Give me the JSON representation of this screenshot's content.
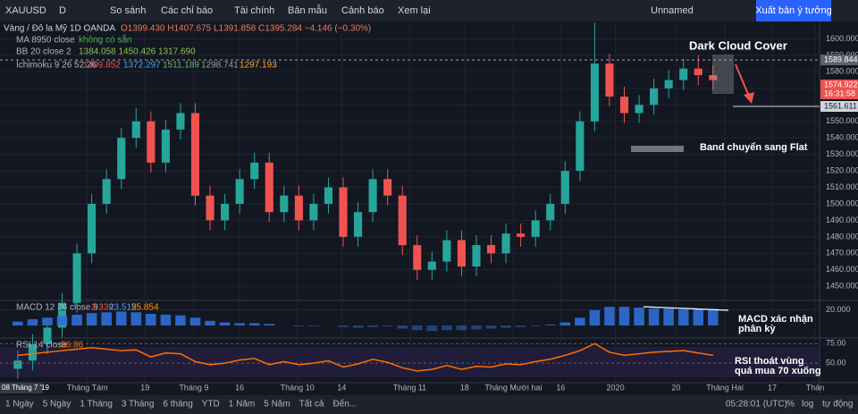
{
  "toolbar": {
    "symbol": "XAUUSD",
    "interval": "D",
    "items": [
      "So sánh",
      "Các chỉ báo",
      "Tài chính",
      "Bản mẫu",
      "Cảnh báo",
      "Xem lại"
    ],
    "layout": "Unnamed",
    "publish": "Xuất bản ý tưởng"
  },
  "legend": {
    "title": "Vàng / Đô la Mỹ  1D  OANDA",
    "ohlc": "O1399.430 H1407.675 L1391.858 C1395.284 −4.146 (−0.30%)",
    "ma": "MA 8950 close",
    "ma_value": "không có sẵn",
    "bb": "BB 20 close 2",
    "bb_values": "1384.058 1450.426 1317.690",
    "ichimoku": "Ichimoku 9 26 52 26",
    "ichimoku_values": [
      "1409.852",
      "1372.297",
      "1511.189",
      "1298.741",
      "1297.193"
    ],
    "macd": "MACD 12 26 close 9",
    "macd_values": [
      "−2.339",
      "23.515",
      "25.854"
    ],
    "rsi": "RSI 14 close",
    "rsi_value": "56.86"
  },
  "annotations": {
    "dark_cloud": "Dark Cloud Cover",
    "band_flat": "Band chuyển sang Flat",
    "macd_note": [
      "MACD xác nhận",
      "phân kỳ"
    ],
    "rsi_note": [
      "RSI thoát vùng",
      "quá mua 70 xuống"
    ]
  },
  "price_labels": [
    "1589.844",
    "1574.922",
    "16:31:58",
    "1561.611"
  ],
  "start_date": "08 Tháng 7 '19",
  "bottom_bar": {
    "ranges": [
      "1 Ngày",
      "5 Ngày",
      "1 Tháng",
      "3 Tháng",
      "6 tháng",
      "YTD",
      "1 Năm",
      "5 Năm",
      "Tất cả",
      "Đến..."
    ],
    "time": "05:28:01 (UTC)",
    "options": [
      "%",
      "log",
      "tự động"
    ]
  },
  "chart_data": [
    {
      "type": "candlestick",
      "up_color": "#26a69a",
      "down_color": "#ef5350",
      "xlim": [
        -1.2,
        54.2
      ],
      "xticks": [
        {
          "value": 4.7,
          "label": "Tháng Tám"
        },
        {
          "value": 8.6,
          "label": "19"
        },
        {
          "value": 11.9,
          "label": "Tháng 9"
        },
        {
          "value": 15,
          "label": "16"
        },
        {
          "value": 18.9,
          "label": "Tháng 10"
        },
        {
          "value": 21.9,
          "label": "14"
        },
        {
          "value": 26.5,
          "label": "Tháng 11"
        },
        {
          "value": 30.2,
          "label": "18"
        },
        {
          "value": 33.5,
          "label": "Tháng Mười hai"
        },
        {
          "value": 36.7,
          "label": "16"
        },
        {
          "value": 40.4,
          "label": "2020"
        },
        {
          "value": 44.5,
          "label": "20"
        },
        {
          "value": 47.8,
          "label": "Tháng Hai"
        },
        {
          "value": 51,
          "label": "17"
        },
        {
          "value": 53.9,
          "label": "Thán"
        }
      ],
      "ylim": [
        1442,
        1610
      ],
      "yticks": [
        {
          "value": 1450,
          "label": "1450.000"
        },
        {
          "value": 1460,
          "label": "1460.000"
        },
        {
          "value": 1470,
          "label": "1470.000"
        },
        {
          "value": 1480,
          "label": "1480.000"
        },
        {
          "value": 1490,
          "label": "1490.000"
        },
        {
          "value": 1500,
          "label": "1500.000"
        },
        {
          "value": 1510,
          "label": "1510.000"
        },
        {
          "value": 1520,
          "label": "1520.000"
        },
        {
          "value": 1530,
          "label": "1530.000"
        },
        {
          "value": 1540,
          "label": "1540.000"
        },
        {
          "value": 1550,
          "label": "1550.000"
        },
        {
          "value": 1560,
          "label": "1560.000"
        },
        {
          "value": 1570,
          "label": "1570.000"
        },
        {
          "value": 1580,
          "label": "1580.000"
        },
        {
          "value": 1590,
          "label": "1590.000"
        },
        {
          "value": 1600,
          "label": "1600.000"
        }
      ],
      "open": [
        1400,
        1405,
        1415,
        1425,
        1440,
        1470,
        1500,
        1515,
        1540,
        1550,
        1525,
        1545,
        1555,
        1505,
        1490,
        1500,
        1515,
        1525,
        1495,
        1505,
        1490,
        1500,
        1510,
        1480,
        1495,
        1515,
        1505,
        1475,
        1460,
        1465,
        1478,
        1462,
        1475,
        1470,
        1482,
        1480,
        1490,
        1500,
        1520,
        1550,
        1585,
        1565,
        1555,
        1560,
        1570,
        1575,
        1582,
        1578
      ],
      "high": [
        1411,
        1421,
        1431,
        1446,
        1476,
        1506,
        1521,
        1546,
        1558,
        1556,
        1551,
        1561,
        1561,
        1511,
        1506,
        1521,
        1531,
        1531,
        1511,
        1511,
        1506,
        1516,
        1516,
        1501,
        1521,
        1521,
        1511,
        1481,
        1471,
        1484,
        1484,
        1481,
        1481,
        1488,
        1488,
        1496,
        1506,
        1526,
        1556,
        1610,
        1591,
        1571,
        1566,
        1576,
        1581,
        1588,
        1590,
        1584
      ],
      "low": [
        1394,
        1399,
        1409,
        1419,
        1434,
        1464,
        1494,
        1509,
        1534,
        1519,
        1519,
        1539,
        1499,
        1484,
        1484,
        1494,
        1509,
        1489,
        1489,
        1484,
        1484,
        1494,
        1474,
        1474,
        1489,
        1499,
        1469,
        1454,
        1454,
        1459,
        1456,
        1456,
        1464,
        1464,
        1474,
        1474,
        1484,
        1494,
        1514,
        1544,
        1559,
        1549,
        1549,
        1554,
        1564,
        1569,
        1572,
        1569
      ],
      "close": [
        1405,
        1415,
        1425,
        1440,
        1470,
        1500,
        1515,
        1540,
        1550,
        1525,
        1545,
        1555,
        1505,
        1490,
        1500,
        1515,
        1525,
        1495,
        1505,
        1490,
        1500,
        1510,
        1480,
        1495,
        1515,
        1505,
        1475,
        1460,
        1465,
        1478,
        1462,
        1475,
        1470,
        1482,
        1480,
        1490,
        1500,
        1520,
        1550,
        1585,
        1565,
        1555,
        1560,
        1570,
        1575,
        1582,
        1578,
        1575
      ]
    },
    {
      "type": "bar",
      "color": "#2f6fd6",
      "ylim": [
        -15,
        30
      ],
      "yticks": [
        {
          "value": 20,
          "label": "20.000"
        }
      ],
      "values": [
        5,
        8,
        10,
        12,
        14,
        16,
        17,
        18,
        17,
        15,
        14,
        13,
        10,
        6,
        4,
        3,
        3,
        2,
        0,
        -1,
        -1,
        0,
        -2,
        -3,
        -2,
        -1,
        -4,
        -6,
        -7,
        -6,
        -6,
        -5,
        -4,
        -3,
        -2,
        -1,
        1,
        4,
        10,
        20,
        24,
        24,
        23,
        22,
        22,
        21,
        21,
        20
      ]
    },
    {
      "type": "line",
      "color": "#ff6d00",
      "ylim": [
        26,
        80
      ],
      "yticks": [
        {
          "value": 75,
          "label": "75.00"
        },
        {
          "value": 50,
          "label": "50.00"
        }
      ],
      "values": [
        60,
        62,
        64,
        66,
        68,
        70,
        68,
        66,
        67,
        58,
        63,
        62,
        52,
        48,
        50,
        54,
        56,
        48,
        52,
        48,
        50,
        53,
        45,
        49,
        55,
        51,
        44,
        40,
        42,
        47,
        42,
        46,
        45,
        49,
        48,
        52,
        55,
        60,
        66,
        75,
        64,
        60,
        62,
        64,
        65,
        66,
        63,
        60
      ]
    }
  ]
}
